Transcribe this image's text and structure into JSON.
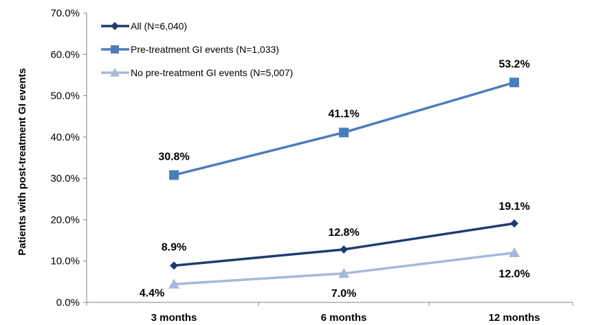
{
  "chart_data": {
    "type": "line",
    "categories": [
      "3 months",
      "6 months",
      "12 months"
    ],
    "ylabel": "Patients with post-treatment GI events",
    "ylim": [
      0,
      70
    ],
    "yticks": [
      "0.0%",
      "10.0%",
      "20.0%",
      "30.0%",
      "40.0%",
      "50.0%",
      "60.0%",
      "70.0%"
    ],
    "grid": false,
    "legend_position": "top-left",
    "series": [
      {
        "name": "All (N=6,040)",
        "values": [
          8.9,
          12.8,
          19.1
        ],
        "labels": [
          "8.9%",
          "12.8%",
          "19.1%"
        ],
        "color": "#1f3c6e",
        "marker": "diamond"
      },
      {
        "name": "Pre-treatment GI events (N=1,033)",
        "values": [
          30.8,
          41.1,
          53.2
        ],
        "labels": [
          "30.8%",
          "41.1%",
          "53.2%"
        ],
        "color": "#4a7ebb",
        "marker": "square"
      },
      {
        "name": "No pre-treatment GI events (N=5,007)",
        "values": [
          4.4,
          7.0,
          12.0
        ],
        "labels": [
          "4.4%",
          "7.0%",
          "12.0%"
        ],
        "color": "#a6b8d8",
        "marker": "triangle"
      }
    ]
  }
}
